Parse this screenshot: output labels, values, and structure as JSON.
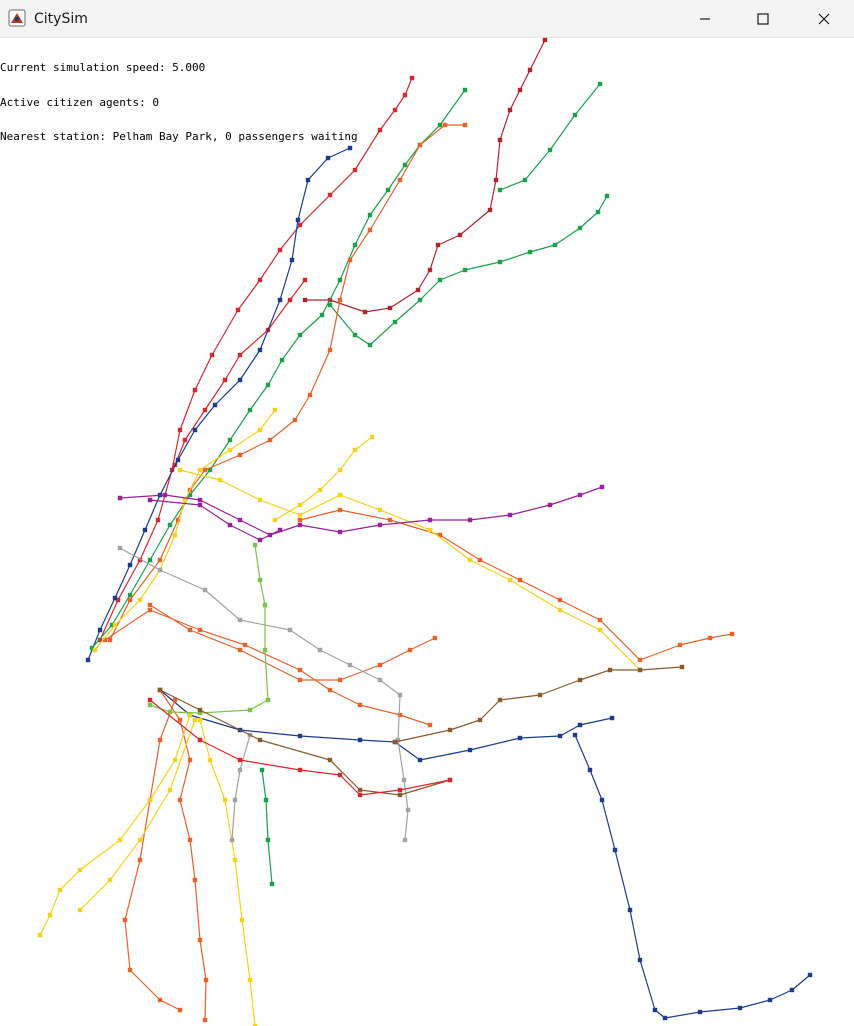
{
  "window": {
    "title": "CitySim",
    "app_icon": "citysim-app-icon",
    "controls": {
      "minimize_icon": "minimize-icon",
      "maximize_icon": "maximize-icon",
      "close_icon": "close-icon"
    }
  },
  "hud": {
    "speed_text": "Current simulation speed: 5.000",
    "agents_text": "Active citizen agents: 0",
    "station_text": "Nearest station: Pelham Bay Park, 0 passengers waiting"
  },
  "colors": {
    "red": "#d7282f",
    "darkred": "#b5242a",
    "navy": "#1b3b8f",
    "green": "#1aa14a",
    "orange": "#e8622a",
    "yellow": "#f6d21a",
    "purple": "#9c1f9c",
    "gray": "#a3a3a3",
    "lime": "#7bc24a",
    "brown": "#8a5a2b",
    "darkorange": "#ff6319"
  }
}
